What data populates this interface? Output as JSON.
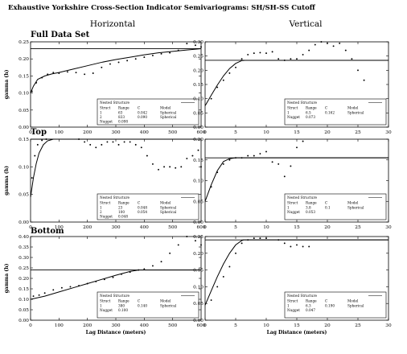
{
  "page": {
    "title": "Exhaustive Yorkshire Cross-Section Indicator Semivariograms: SH/SH-SS Cutoff",
    "col_headers": [
      "Horizontal",
      "Vertical"
    ],
    "row_labels": [
      "Full Data Set",
      "Top",
      "Bottom"
    ]
  },
  "chart_data": [
    {
      "type": "scatter",
      "row": 0,
      "col": 0,
      "ylabel": "gamma (h)",
      "xlabel": "",
      "xlim": [
        0,
        600
      ],
      "ylim": [
        0,
        0.25
      ],
      "xticks": [
        0,
        100,
        200,
        300,
        400,
        500,
        600
      ],
      "yticks": [
        0,
        0.05,
        0.1,
        0.15,
        0.2,
        0.25
      ],
      "sill": 0.23,
      "experimental": {
        "x": [
          5,
          20,
          40,
          60,
          80,
          100,
          130,
          160,
          190,
          220,
          250,
          280,
          310,
          340,
          370,
          400,
          430,
          460,
          490,
          520,
          550,
          580,
          600
        ],
        "y": [
          0.105,
          0.13,
          0.145,
          0.155,
          0.16,
          0.158,
          0.162,
          0.16,
          0.155,
          0.158,
          0.175,
          0.185,
          0.19,
          0.195,
          0.2,
          0.205,
          0.21,
          0.215,
          0.218,
          0.225,
          0.245,
          0.24,
          0.235
        ]
      },
      "model": {
        "x": [
          0,
          10,
          25,
          50,
          75,
          100,
          150,
          200,
          250,
          300,
          350,
          400,
          450,
          500,
          550,
          600
        ],
        "y": [
          0.1,
          0.12,
          0.14,
          0.15,
          0.156,
          0.16,
          0.17,
          0.18,
          0.19,
          0.198,
          0.205,
          0.212,
          0.218,
          0.222,
          0.226,
          0.23
        ]
      },
      "legend": {
        "title": "Nested Structure",
        "headers": [
          "Struct",
          "Range",
          "C",
          "Model"
        ],
        "rows": [
          [
            "1",
            "63",
            "0.042",
            "Spherical"
          ],
          [
            "2",
            "833",
            "0.090",
            "Spherical"
          ]
        ],
        "nugget_label": "Nugget",
        "nugget_value": "0.098"
      }
    },
    {
      "type": "scatter",
      "row": 0,
      "col": 1,
      "ylabel": "",
      "xlabel": "",
      "xlim": [
        0,
        30
      ],
      "ylim": [
        0,
        0.3
      ],
      "xticks": [
        0,
        5,
        10,
        15,
        20,
        25,
        30
      ],
      "yticks": [
        0,
        0.05,
        0.1,
        0.15,
        0.2,
        0.25,
        0.3
      ],
      "sill": 0.235,
      "experimental": {
        "x": [
          1,
          2,
          3,
          4,
          5,
          6,
          7,
          8,
          9,
          10,
          11,
          12,
          13,
          14,
          15,
          16,
          17,
          18,
          19,
          20,
          21,
          22,
          23,
          24,
          25,
          26
        ],
        "y": [
          0.1,
          0.14,
          0.165,
          0.19,
          0.21,
          0.24,
          0.255,
          0.26,
          0.262,
          0.26,
          0.265,
          0.24,
          0.235,
          0.24,
          0.24,
          0.255,
          0.27,
          0.29,
          0.3,
          0.295,
          0.285,
          0.295,
          0.27,
          0.24,
          0.2,
          0.165
        ]
      },
      "model": {
        "x": [
          0,
          1,
          2,
          3,
          4,
          5,
          6,
          6.5,
          30
        ],
        "y": [
          0.075,
          0.112,
          0.148,
          0.18,
          0.206,
          0.224,
          0.234,
          0.235,
          0.235
        ]
      },
      "legend": {
        "title": "Nested Structure",
        "headers": [
          "Struct",
          "Range",
          "C",
          "Model"
        ],
        "rows": [
          [
            "1",
            "6.5",
            "0.162",
            "Spherical"
          ]
        ],
        "nugget_label": "Nugget",
        "nugget_value": "0.073"
      }
    },
    {
      "type": "scatter",
      "row": 1,
      "col": 0,
      "ylabel": "gamma (h)",
      "xlabel": "",
      "xlim": [
        0,
        600
      ],
      "ylim": [
        0,
        0.15
      ],
      "xticks": [
        0,
        100,
        200,
        300,
        400,
        500,
        600
      ],
      "yticks": [
        0,
        0.05,
        0.1,
        0.15
      ],
      "sill": 0.15,
      "experimental": {
        "x": [
          5,
          15,
          25,
          40,
          55,
          70,
          90,
          110,
          130,
          150,
          170,
          190,
          210,
          230,
          250,
          270,
          290,
          310,
          330,
          350,
          370,
          390,
          410,
          430,
          450,
          470,
          490,
          510,
          530,
          550,
          570,
          590,
          600
        ],
        "y": [
          0.08,
          0.12,
          0.14,
          0.148,
          0.15,
          0.152,
          0.153,
          0.156,
          0.158,
          0.155,
          0.15,
          0.145,
          0.14,
          0.135,
          0.14,
          0.145,
          0.145,
          0.14,
          0.145,
          0.145,
          0.14,
          0.135,
          0.12,
          0.105,
          0.095,
          0.1,
          0.1,
          0.098,
          0.1,
          0.115,
          0.12,
          0.13,
          0.1
        ]
      },
      "model": {
        "x": [
          0,
          10,
          20,
          30,
          45,
          60,
          80,
          100,
          600
        ],
        "y": [
          0.045,
          0.08,
          0.106,
          0.125,
          0.14,
          0.147,
          0.15,
          0.15,
          0.15
        ]
      },
      "legend": {
        "title": "Nested Structure",
        "headers": [
          "Struct",
          "Range",
          "C",
          "Model"
        ],
        "rows": [
          [
            "1",
            "23",
            "0.048",
            "Spherical"
          ],
          [
            "2",
            "100",
            "0.054",
            "Spherical"
          ]
        ],
        "nugget_label": "Nugget",
        "nugget_value": "0.048"
      }
    },
    {
      "type": "scatter",
      "row": 1,
      "col": 1,
      "ylabel": "",
      "xlabel": "",
      "xlim": [
        0,
        30
      ],
      "ylim": [
        0,
        0.2
      ],
      "xticks": [
        0,
        5,
        10,
        15,
        20,
        25,
        30
      ],
      "yticks": [
        0,
        0.05,
        0.1,
        0.15,
        0.2
      ],
      "sill": 0.155,
      "experimental": {
        "x": [
          1,
          2,
          3,
          4,
          5,
          6,
          7,
          8,
          9,
          10,
          11,
          12,
          13,
          14,
          15,
          16
        ],
        "y": [
          0.085,
          0.12,
          0.14,
          0.15,
          0.155,
          0.155,
          0.16,
          0.16,
          0.165,
          0.17,
          0.145,
          0.14,
          0.11,
          0.135,
          0.18,
          0.195
        ]
      },
      "model": {
        "x": [
          0,
          1,
          2,
          3,
          4,
          5,
          30
        ],
        "y": [
          0.05,
          0.09,
          0.124,
          0.146,
          0.153,
          0.155,
          0.155
        ]
      },
      "legend": {
        "title": "Nested Structure",
        "headers": [
          "Struct",
          "Range",
          "C",
          "Model"
        ],
        "rows": [
          [
            "1",
            "3.8",
            "0.1",
            "Spherical"
          ]
        ],
        "nugget_label": "Nugget",
        "nugget_value": "0.053"
      }
    },
    {
      "type": "scatter",
      "row": 2,
      "col": 0,
      "ylabel": "gamma (h)",
      "xlabel": "Lag Distance (meters)",
      "xlim": [
        0,
        600
      ],
      "ylim": [
        0,
        0.4
      ],
      "xticks": [
        0,
        100,
        200,
        300,
        400,
        500,
        600
      ],
      "yticks": [
        0,
        0.05,
        0.1,
        0.15,
        0.2,
        0.25,
        0.3,
        0.35,
        0.4
      ],
      "sill": 0.24,
      "experimental": {
        "x": [
          10,
          30,
          50,
          80,
          110,
          140,
          170,
          200,
          230,
          260,
          290,
          320,
          350,
          380,
          400,
          430,
          460,
          490,
          520,
          550,
          580,
          600
        ],
        "y": [
          0.115,
          0.12,
          0.13,
          0.145,
          0.155,
          0.16,
          0.165,
          0.175,
          0.185,
          0.195,
          0.205,
          0.22,
          0.23,
          0.24,
          0.245,
          0.26,
          0.28,
          0.32,
          0.36,
          0.4,
          0.38,
          0.36
        ]
      },
      "model": {
        "x": [
          0,
          50,
          100,
          150,
          200,
          250,
          300,
          350,
          380,
          600
        ],
        "y": [
          0.1,
          0.115,
          0.135,
          0.155,
          0.175,
          0.195,
          0.215,
          0.233,
          0.24,
          0.24
        ]
      },
      "legend": {
        "title": "Nested Structure",
        "headers": [
          "Struct",
          "Range",
          "C",
          "Model"
        ],
        "rows": [
          [
            "1",
            "380",
            "0.140",
            "Spherical"
          ]
        ],
        "nugget_label": "Nugget",
        "nugget_value": "0.100"
      }
    },
    {
      "type": "scatter",
      "row": 2,
      "col": 1,
      "ylabel": "",
      "xlabel": "Lag Distance (meters)",
      "xlim": [
        0,
        30
      ],
      "ylim": [
        0,
        0.25
      ],
      "xticks": [
        0,
        5,
        10,
        15,
        20,
        25,
        30
      ],
      "yticks": [
        0,
        0.05,
        0.1,
        0.15,
        0.2,
        0.25
      ],
      "sill": 0.24,
      "experimental": {
        "x": [
          1,
          2,
          3,
          4,
          5,
          6,
          7,
          8,
          9,
          10,
          11,
          12,
          13,
          14,
          15,
          16,
          17
        ],
        "y": [
          0.06,
          0.1,
          0.13,
          0.16,
          0.2,
          0.23,
          0.24,
          0.245,
          0.245,
          0.245,
          0.255,
          0.24,
          0.23,
          0.22,
          0.225,
          0.22,
          0.22
        ]
      },
      "model": {
        "x": [
          0,
          1,
          2,
          3,
          4,
          5,
          6,
          6.3,
          30
        ],
        "y": [
          0.045,
          0.088,
          0.13,
          0.168,
          0.2,
          0.225,
          0.238,
          0.24,
          0.24
        ]
      },
      "legend": {
        "title": "Nested Structure",
        "headers": [
          "Struct",
          "Range",
          "C",
          "Model"
        ],
        "rows": [
          [
            "1",
            "6.3",
            "0.190",
            "Spherical"
          ]
        ],
        "nugget_label": "Nugget",
        "nugget_value": "0.047"
      }
    }
  ]
}
